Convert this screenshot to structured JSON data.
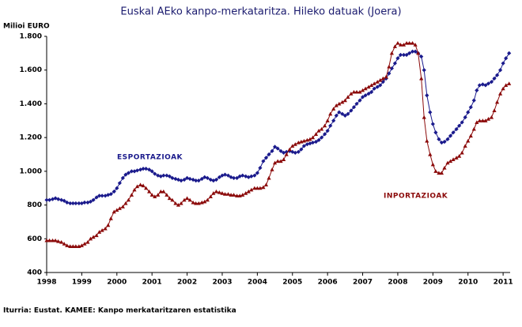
{
  "chart_data": {
    "type": "line",
    "title": "Euskal AEko kanpo-merkataritza. Hileko datuak (Joera)",
    "y_label": "Milioi EURO",
    "source": "Iturria: Eustat. KAMEE: Kanpo merkataritzaren estatistika",
    "x": [
      1998,
      1998.08,
      1998.17,
      1998.25,
      1998.33,
      1998.42,
      1998.5,
      1998.58,
      1998.67,
      1998.75,
      1998.83,
      1998.92,
      1999,
      1999.08,
      1999.17,
      1999.25,
      1999.33,
      1999.42,
      1999.5,
      1999.58,
      1999.67,
      1999.75,
      1999.83,
      1999.92,
      2000,
      2000.08,
      2000.17,
      2000.25,
      2000.33,
      2000.42,
      2000.5,
      2000.58,
      2000.67,
      2000.75,
      2000.83,
      2000.92,
      2001,
      2001.08,
      2001.17,
      2001.25,
      2001.33,
      2001.42,
      2001.5,
      2001.58,
      2001.67,
      2001.75,
      2001.83,
      2001.92,
      2002,
      2002.08,
      2002.17,
      2002.25,
      2002.33,
      2002.42,
      2002.5,
      2002.58,
      2002.67,
      2002.75,
      2002.83,
      2002.92,
      2003,
      2003.08,
      2003.17,
      2003.25,
      2003.33,
      2003.42,
      2003.5,
      2003.58,
      2003.67,
      2003.75,
      2003.83,
      2003.92,
      2004,
      2004.08,
      2004.17,
      2004.25,
      2004.33,
      2004.42,
      2004.5,
      2004.58,
      2004.67,
      2004.75,
      2004.83,
      2004.92,
      2005,
      2005.08,
      2005.17,
      2005.25,
      2005.33,
      2005.42,
      2005.5,
      2005.58,
      2005.67,
      2005.75,
      2005.83,
      2005.92,
      2006,
      2006.08,
      2006.17,
      2006.25,
      2006.33,
      2006.42,
      2006.5,
      2006.58,
      2006.67,
      2006.75,
      2006.83,
      2006.92,
      2007,
      2007.08,
      2007.17,
      2007.25,
      2007.33,
      2007.42,
      2007.5,
      2007.58,
      2007.67,
      2007.75,
      2007.83,
      2007.92,
      2008,
      2008.08,
      2008.17,
      2008.25,
      2008.33,
      2008.42,
      2008.5,
      2008.58,
      2008.67,
      2008.75,
      2008.83,
      2008.92,
      2009,
      2009.08,
      2009.17,
      2009.25,
      2009.33,
      2009.42,
      2009.5,
      2009.58,
      2009.67,
      2009.75,
      2009.83,
      2009.92,
      2010,
      2010.08,
      2010.17,
      2010.25,
      2010.33,
      2010.42,
      2010.5,
      2010.58,
      2010.67,
      2010.75,
      2010.83,
      2010.92,
      2011,
      2011.08,
      2011.17
    ],
    "series": [
      {
        "name": "ESPORTAZIOAK",
        "color": "#1a1a8c",
        "marker": "diamond",
        "values": [
          830,
          830,
          835,
          840,
          835,
          830,
          825,
          815,
          810,
          810,
          810,
          810,
          810,
          815,
          815,
          820,
          830,
          845,
          855,
          855,
          855,
          860,
          865,
          880,
          900,
          930,
          960,
          980,
          990,
          1000,
          1000,
          1005,
          1010,
          1015,
          1015,
          1010,
          1000,
          985,
          975,
          970,
          975,
          975,
          970,
          960,
          955,
          950,
          945,
          950,
          960,
          955,
          950,
          945,
          945,
          955,
          965,
          960,
          950,
          945,
          950,
          965,
          975,
          980,
          975,
          965,
          960,
          960,
          970,
          975,
          970,
          965,
          970,
          975,
          990,
          1020,
          1060,
          1080,
          1100,
          1120,
          1145,
          1135,
          1120,
          1110,
          1115,
          1120,
          1115,
          1110,
          1115,
          1130,
          1150,
          1160,
          1165,
          1170,
          1175,
          1185,
          1200,
          1220,
          1240,
          1270,
          1300,
          1330,
          1350,
          1340,
          1330,
          1340,
          1360,
          1380,
          1400,
          1420,
          1440,
          1450,
          1460,
          1470,
          1490,
          1500,
          1510,
          1530,
          1550,
          1580,
          1610,
          1640,
          1670,
          1690,
          1690,
          1690,
          1700,
          1710,
          1710,
          1700,
          1680,
          1600,
          1450,
          1350,
          1280,
          1230,
          1190,
          1170,
          1175,
          1190,
          1210,
          1230,
          1250,
          1270,
          1290,
          1320,
          1350,
          1380,
          1420,
          1480,
          1510,
          1515,
          1510,
          1520,
          1530,
          1550,
          1570,
          1600,
          1640,
          1670,
          1700
        ]
      },
      {
        "name": "INPORTAZIOAK",
        "color": "#8b0a0a",
        "marker": "triangle",
        "values": [
          590,
          590,
          590,
          590,
          585,
          580,
          570,
          560,
          555,
          555,
          555,
          555,
          560,
          570,
          580,
          600,
          610,
          620,
          640,
          650,
          660,
          680,
          720,
          760,
          770,
          780,
          790,
          810,
          830,
          860,
          890,
          910,
          920,
          915,
          900,
          880,
          860,
          850,
          860,
          880,
          880,
          860,
          840,
          830,
          810,
          800,
          810,
          830,
          840,
          830,
          815,
          810,
          810,
          815,
          820,
          830,
          850,
          870,
          880,
          875,
          870,
          865,
          865,
          860,
          860,
          855,
          855,
          860,
          870,
          880,
          890,
          900,
          900,
          900,
          905,
          920,
          960,
          1010,
          1050,
          1060,
          1060,
          1070,
          1100,
          1130,
          1150,
          1160,
          1170,
          1175,
          1180,
          1185,
          1190,
          1200,
          1220,
          1240,
          1250,
          1270,
          1300,
          1340,
          1370,
          1390,
          1400,
          1410,
          1420,
          1440,
          1460,
          1470,
          1470,
          1470,
          1480,
          1490,
          1500,
          1510,
          1520,
          1530,
          1540,
          1550,
          1560,
          1620,
          1700,
          1740,
          1760,
          1750,
          1750,
          1760,
          1760,
          1760,
          1750,
          1700,
          1550,
          1320,
          1180,
          1100,
          1040,
          1000,
          990,
          990,
          1020,
          1050,
          1060,
          1070,
          1080,
          1090,
          1110,
          1150,
          1180,
          1210,
          1250,
          1290,
          1300,
          1300,
          1300,
          1310,
          1320,
          1360,
          1410,
          1460,
          1490,
          1510,
          1520
        ]
      }
    ],
    "xlim": [
      1998,
      2011.2
    ],
    "xticks": [
      1998,
      1999,
      2000,
      2001,
      2002,
      2003,
      2004,
      2005,
      2006,
      2007,
      2008,
      2009,
      2010,
      2011
    ],
    "ylim": [
      400,
      1800
    ],
    "yticks": [
      400,
      600,
      800,
      {
        "value": 1000,
        "label": "1.000"
      },
      {
        "value": 1200,
        "label": "1.200"
      },
      {
        "value": 1400,
        "label": "1.400"
      },
      {
        "value": 1600,
        "label": "1.600"
      },
      {
        "value": 1800,
        "label": "1.800"
      }
    ],
    "grid": false
  }
}
